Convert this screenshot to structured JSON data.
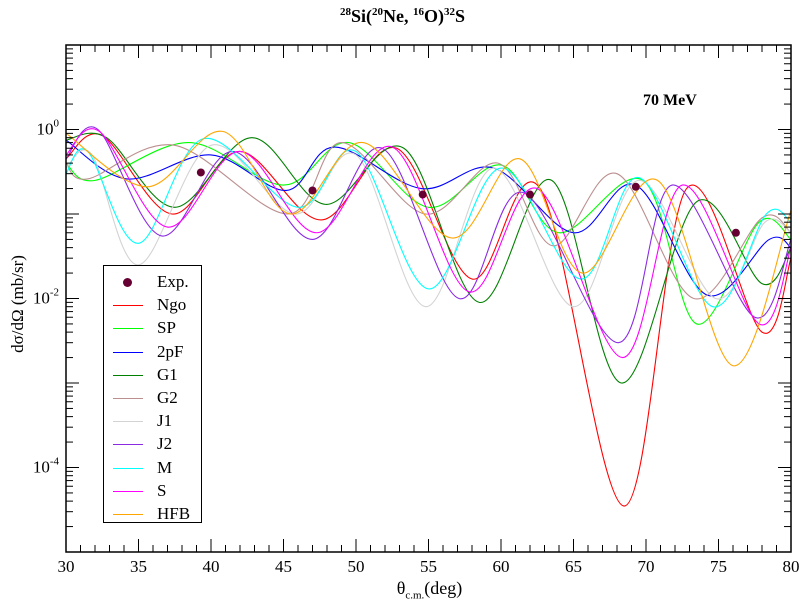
{
  "chart_data": {
    "type": "line",
    "title": {
      "a1": "28",
      "e1": "Si(",
      "a2": "20",
      "e2": "Ne, ",
      "a3": "16",
      "e3": "O)",
      "a4": "32",
      "e4": "S"
    },
    "annotation": "70 MeV",
    "xlabel": {
      "main": "θ",
      "sub": "c.m.",
      "unit": "(deg)"
    },
    "ylabel": "dσ/dΩ  (mb/sr)",
    "xlim": [
      30,
      80
    ],
    "ylim": [
      1e-05,
      10
    ],
    "yscale": "log",
    "xticks": [
      "30",
      "35",
      "40",
      "45",
      "50",
      "55",
      "60",
      "65",
      "70",
      "75",
      "80"
    ],
    "yticks": [
      {
        "base": "10",
        "exp": "-4",
        "value": 0.0001
      },
      {
        "base": "10",
        "exp": "-2",
        "value": 0.01
      },
      {
        "base": "10",
        "exp": "0",
        "value": 1
      }
    ],
    "grid": false,
    "legend_position": "bottom-left",
    "experimental": {
      "name": "Exp.",
      "color": "#660033",
      "points": [
        [
          39.3,
          0.31
        ],
        [
          47.0,
          0.19
        ],
        [
          54.6,
          0.17
        ],
        [
          62.0,
          0.17
        ],
        [
          69.3,
          0.21
        ],
        [
          76.2,
          0.06
        ]
      ]
    },
    "series": [
      {
        "name": "Ngo",
        "color": "#ff0000",
        "points": [
          [
            30,
            0.45
          ],
          [
            32.5,
            0.85
          ],
          [
            37.3,
            0.1
          ],
          [
            42,
            0.55
          ],
          [
            47.6,
            0.085
          ],
          [
            52.8,
            0.6
          ],
          [
            58,
            0.017
          ],
          [
            62.7,
            0.2
          ],
          [
            68.5,
            3.5e-05
          ],
          [
            72.8,
            0.2
          ],
          [
            78,
            0.004
          ],
          [
            80,
            0.03
          ]
        ]
      },
      {
        "name": "SP",
        "color": "#00ff00",
        "points": [
          [
            30,
            0.4
          ],
          [
            32,
            0.25
          ],
          [
            38.5,
            0.7
          ],
          [
            45,
            0.22
          ],
          [
            49.5,
            0.7
          ],
          [
            55,
            0.12
          ],
          [
            60,
            0.38
          ],
          [
            64,
            0.06
          ],
          [
            69.8,
            0.25
          ],
          [
            73.5,
            0.005
          ],
          [
            77.8,
            0.08
          ],
          [
            80,
            0.05
          ]
        ]
      },
      {
        "name": "2pF",
        "color": "#0000ff",
        "points": [
          [
            30,
            0.75
          ],
          [
            34.2,
            0.26
          ],
          [
            40,
            0.5
          ],
          [
            45.2,
            0.19
          ],
          [
            48.5,
            0.62
          ],
          [
            54.5,
            0.2
          ],
          [
            59.5,
            0.35
          ],
          [
            65,
            0.06
          ],
          [
            69.3,
            0.22
          ],
          [
            74.2,
            0.011
          ],
          [
            78.5,
            0.05
          ],
          [
            80,
            0.04
          ]
        ]
      },
      {
        "name": "G1",
        "color": "#008000",
        "points": [
          [
            30,
            0.75
          ],
          [
            32.8,
            0.8
          ],
          [
            37.5,
            0.12
          ],
          [
            42.8,
            0.8
          ],
          [
            47.9,
            0.13
          ],
          [
            53.3,
            0.6
          ],
          [
            58.5,
            0.009
          ],
          [
            63.5,
            0.25
          ],
          [
            68.3,
            0.001
          ],
          [
            73.5,
            0.14
          ],
          [
            78,
            0.015
          ],
          [
            80,
            0.04
          ]
        ]
      },
      {
        "name": "G2",
        "color": "#bc8f8f",
        "points": [
          [
            30,
            0.4
          ],
          [
            31.5,
            0.26
          ],
          [
            37.5,
            0.65
          ],
          [
            45.3,
            0.1
          ],
          [
            49,
            0.7
          ],
          [
            54.8,
            0.1
          ],
          [
            59.8,
            0.4
          ],
          [
            63.6,
            0.042
          ],
          [
            68,
            0.3
          ],
          [
            73.3,
            0.01
          ],
          [
            78,
            0.09
          ],
          [
            80,
            0.06
          ]
        ]
      },
      {
        "name": "J1",
        "color": "#d3d3d3",
        "points": [
          [
            30,
            0.35
          ],
          [
            31.8,
            0.5
          ],
          [
            35,
            0.025
          ],
          [
            40,
            0.65
          ],
          [
            45.8,
            0.1
          ],
          [
            50,
            0.5
          ],
          [
            54.8,
            0.008
          ],
          [
            59.5,
            0.35
          ],
          [
            65,
            0.008
          ],
          [
            69.5,
            0.25
          ],
          [
            74.8,
            0.01
          ],
          [
            78.2,
            0.08
          ],
          [
            80,
            0.06
          ]
        ]
      },
      {
        "name": "J2",
        "color": "#8a2be2",
        "points": [
          [
            30,
            0.45
          ],
          [
            32.2,
            1.0
          ],
          [
            36.6,
            0.055
          ],
          [
            41.5,
            0.55
          ],
          [
            47.0,
            0.05
          ],
          [
            51.8,
            0.6
          ],
          [
            57.1,
            0.01
          ],
          [
            61.5,
            0.18
          ],
          [
            68.1,
            0.003
          ],
          [
            71.8,
            0.22
          ],
          [
            77.5,
            0.006
          ],
          [
            80,
            0.05
          ]
        ]
      },
      {
        "name": "M",
        "color": "#00ffff",
        "points": [
          [
            30,
            0.3
          ],
          [
            31.5,
            0.55
          ],
          [
            35,
            0.045
          ],
          [
            39.5,
            0.78
          ],
          [
            46,
            0.12
          ],
          [
            50,
            0.55
          ],
          [
            55,
            0.013
          ],
          [
            60,
            0.35
          ],
          [
            65.5,
            0.017
          ],
          [
            69.5,
            0.27
          ],
          [
            74.6,
            0.008
          ],
          [
            78.3,
            0.1
          ],
          [
            80,
            0.08
          ]
        ]
      },
      {
        "name": "S",
        "color": "#ff00ff",
        "points": [
          [
            30,
            0.5
          ],
          [
            32.3,
            0.95
          ],
          [
            37.0,
            0.07
          ],
          [
            42,
            0.55
          ],
          [
            47.3,
            0.06
          ],
          [
            52.5,
            0.62
          ],
          [
            57.8,
            0.012
          ],
          [
            62.5,
            0.2
          ],
          [
            68.4,
            0.002
          ],
          [
            72.5,
            0.22
          ],
          [
            77.8,
            0.005
          ],
          [
            80,
            0.04
          ]
        ]
      },
      {
        "name": "HFB",
        "color": "#ffa500",
        "points": [
          [
            30,
            0.9
          ],
          [
            35.6,
            0.21
          ],
          [
            40.8,
            0.95
          ],
          [
            45.5,
            0.1
          ],
          [
            50.5,
            0.7
          ],
          [
            56.6,
            0.052
          ],
          [
            61.3,
            0.45
          ],
          [
            65.6,
            0.02
          ],
          [
            70.8,
            0.25
          ],
          [
            76,
            0.0016
          ],
          [
            80,
            0.11
          ]
        ]
      }
    ]
  }
}
